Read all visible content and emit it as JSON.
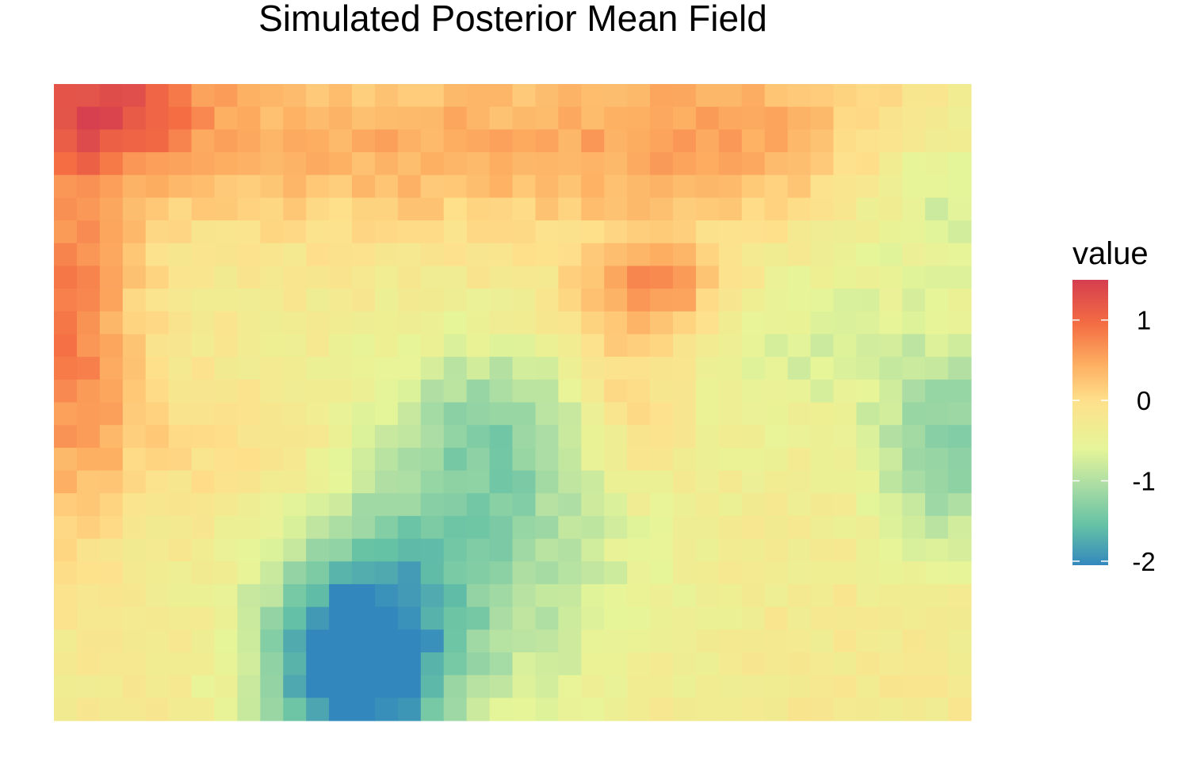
{
  "chart_data": {
    "type": "heatmap",
    "title": "Simulated Posterior Mean Field",
    "xlabel": "",
    "ylabel": "",
    "axes_visible": false,
    "grid": false,
    "value_range": [
      -2.05,
      1.5
    ],
    "grid_size": {
      "cols": 40,
      "rows": 28
    },
    "palette": "Spectral",
    "palette_colors": [
      "#3288BD",
      "#66C2A5",
      "#ABDDA4",
      "#E6F598",
      "#FEE08B",
      "#FDAE61",
      "#F46D43",
      "#D53E4F"
    ],
    "palette_stops": [
      -2.05,
      -1.55,
      -1.05,
      -0.6,
      0.0,
      0.45,
      0.95,
      1.5
    ],
    "legend": {
      "title": "value",
      "placement": "right",
      "ticks": [
        {
          "value": 1,
          "label": "1"
        },
        {
          "value": 0,
          "label": "0"
        },
        {
          "value": -1,
          "label": "-1"
        },
        {
          "value": -2,
          "label": "-2"
        }
      ]
    },
    "field_features": [
      {
        "x": 0.05,
        "y": 0.97,
        "sx": 0.09,
        "sy": 0.08,
        "amp": 1.25
      },
      {
        "x": 0.02,
        "y": 0.62,
        "sx": 0.05,
        "sy": 0.2,
        "amp": 1.05
      },
      {
        "x": 0.3,
        "y": 0.9,
        "sx": 0.18,
        "sy": 0.1,
        "amp": 0.55
      },
      {
        "x": 0.72,
        "y": 0.92,
        "sx": 0.2,
        "sy": 0.1,
        "amp": 0.75
      },
      {
        "x": 0.67,
        "y": 0.68,
        "sx": 0.06,
        "sy": 0.05,
        "amp": 0.85
      },
      {
        "x": 0.62,
        "y": 0.53,
        "sx": 0.05,
        "sy": 0.12,
        "amp": 0.6
      },
      {
        "x": 0.2,
        "y": 0.43,
        "sx": 0.12,
        "sy": 0.08,
        "amp": 0.3
      },
      {
        "x": 0.33,
        "y": 0.08,
        "sx": 0.07,
        "sy": 0.12,
        "amp": -2.0
      },
      {
        "x": 0.45,
        "y": 0.28,
        "sx": 0.13,
        "sy": 0.18,
        "amp": -1.0
      },
      {
        "x": 0.49,
        "y": 0.47,
        "sx": 0.08,
        "sy": 0.08,
        "amp": -0.55
      },
      {
        "x": 0.98,
        "y": 0.43,
        "sx": 0.06,
        "sy": 0.12,
        "amp": -1.05
      },
      {
        "x": 0.8,
        "y": 0.6,
        "sx": 0.1,
        "sy": 0.1,
        "amp": -0.45
      },
      {
        "x": 0.97,
        "y": 0.85,
        "sx": 0.07,
        "sy": 0.1,
        "amp": -0.65
      }
    ],
    "field_offset": -0.25
  }
}
